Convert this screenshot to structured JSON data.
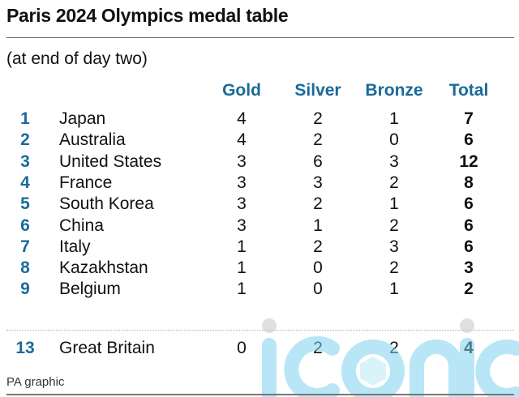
{
  "title": "Paris 2024 Olympics medal table",
  "subtitle": "(at end of day two)",
  "footer": "PA graphic",
  "watermark": "iconic",
  "colors": {
    "accent": "#1a6a9a",
    "text": "#111111",
    "watermark": "#7fd3f0"
  },
  "chart_data": {
    "type": "table",
    "title": "Paris 2024 Olympics medal table",
    "columns": [
      "Gold",
      "Silver",
      "Bronze",
      "Total"
    ],
    "rows": [
      {
        "rank": "1",
        "country": "Japan",
        "gold": "4",
        "silver": "2",
        "bronze": "1",
        "total": "7"
      },
      {
        "rank": "2",
        "country": "Australia",
        "gold": "4",
        "silver": "2",
        "bronze": "0",
        "total": "6"
      },
      {
        "rank": "3",
        "country": "United States",
        "gold": "3",
        "silver": "6",
        "bronze": "3",
        "total": "12"
      },
      {
        "rank": "4",
        "country": "France",
        "gold": "3",
        "silver": "3",
        "bronze": "2",
        "total": "8"
      },
      {
        "rank": "5",
        "country": "South Korea",
        "gold": "3",
        "silver": "2",
        "bronze": "1",
        "total": "6"
      },
      {
        "rank": "6",
        "country": "China",
        "gold": "3",
        "silver": "1",
        "bronze": "2",
        "total": "6"
      },
      {
        "rank": "7",
        "country": "Italy",
        "gold": "1",
        "silver": "2",
        "bronze": "3",
        "total": "6"
      },
      {
        "rank": "8",
        "country": "Kazakhstan",
        "gold": "1",
        "silver": "0",
        "bronze": "2",
        "total": "3"
      },
      {
        "rank": "9",
        "country": "Belgium",
        "gold": "1",
        "silver": "0",
        "bronze": "1",
        "total": "2"
      }
    ],
    "highlight_row": {
      "rank": "13",
      "country": "Great Britain",
      "gold": "0",
      "silver": "2",
      "bronze": "2",
      "total": "4"
    }
  }
}
